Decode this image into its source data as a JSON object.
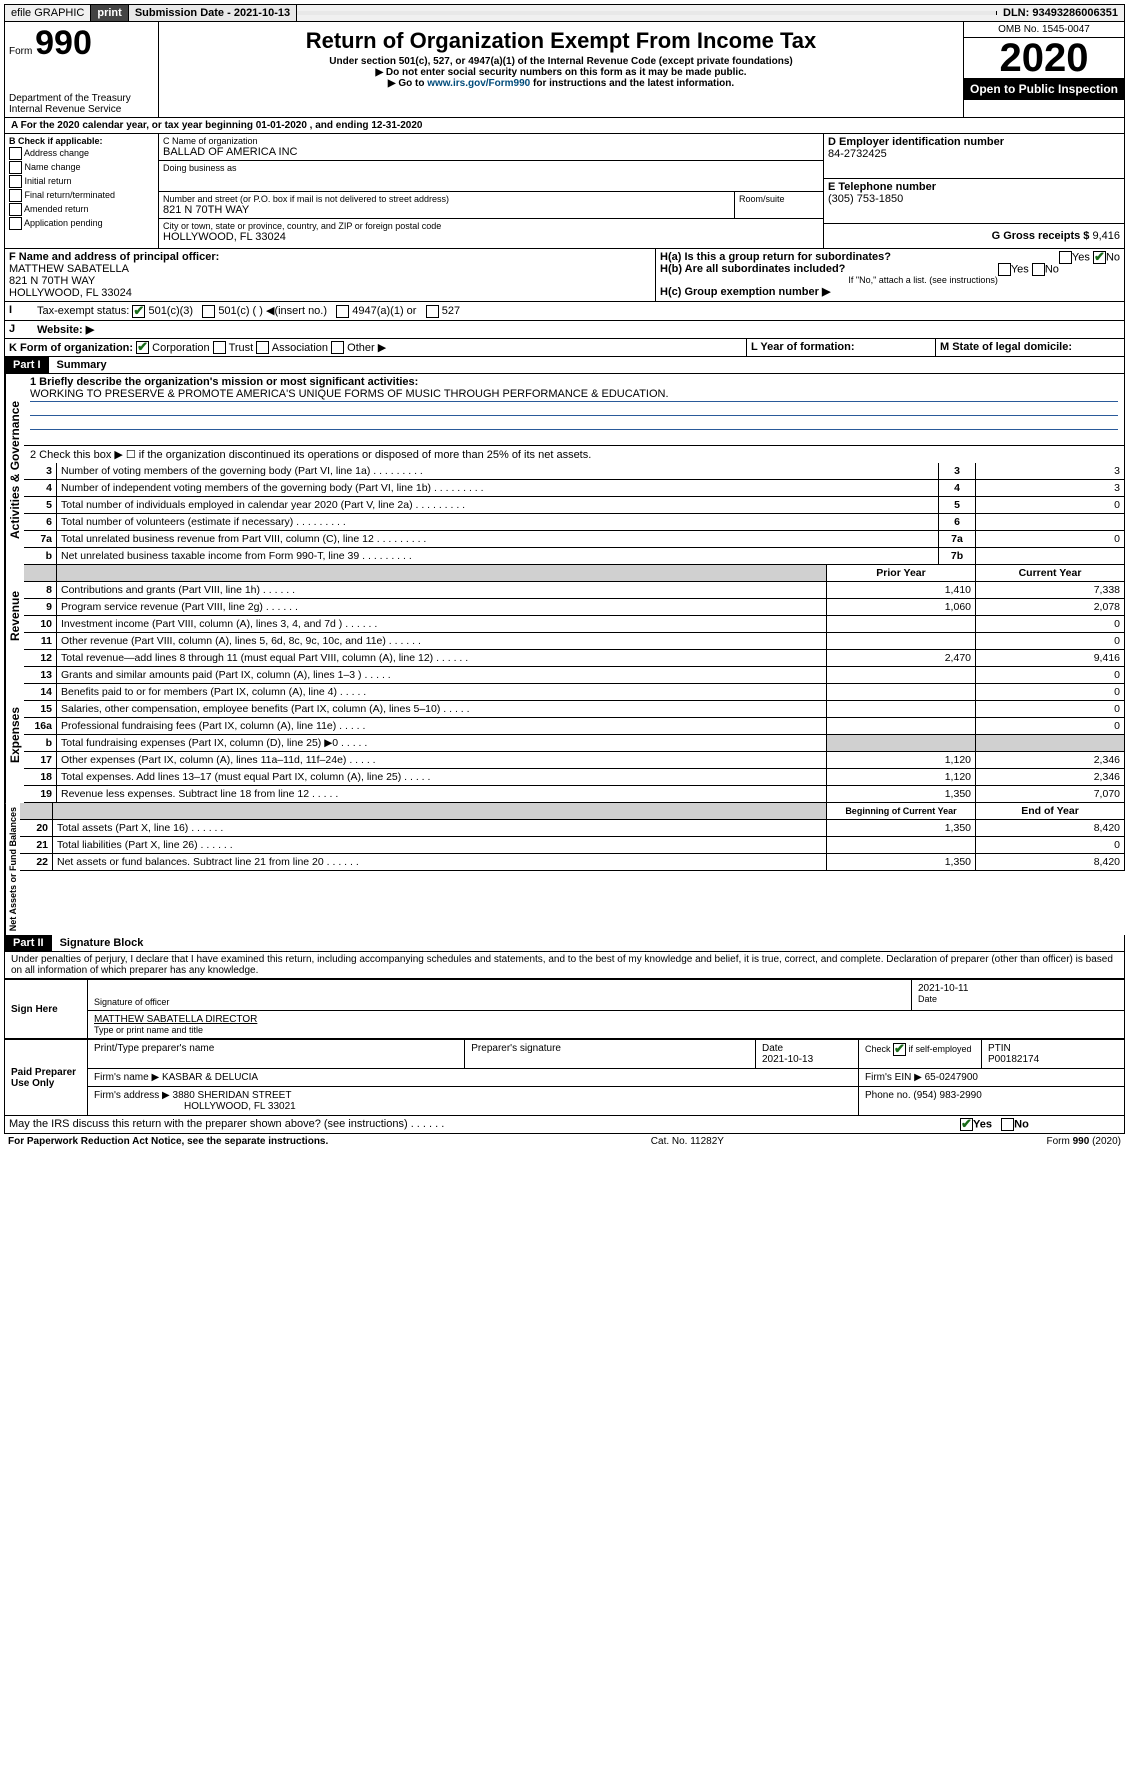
{
  "topbar": {
    "efile": "efile GRAPHIC",
    "print": "print",
    "subdate_label": "Submission Date - 2021-10-13",
    "dln": "DLN: 93493286006351"
  },
  "header": {
    "form_small": "Form",
    "form_num": "990",
    "dept": "Department of the Treasury\nInternal Revenue Service",
    "title": "Return of Organization Exempt From Income Tax",
    "sub1": "Under section 501(c), 527, or 4947(a)(1) of the Internal Revenue Code (except private foundations)",
    "sub2": "▶ Do not enter social security numbers on this form as it may be made public.",
    "sub3_pre": "▶ Go to ",
    "sub3_link": "www.irs.gov/Form990",
    "sub3_post": " for instructions and the latest information.",
    "omb": "OMB No. 1545-0047",
    "year": "2020",
    "otp": "Open to Public Inspection"
  },
  "period": "A   For the 2020 calendar year, or tax year beginning 01-01-2020    , and ending 12-31-2020",
  "boxB": {
    "label": "B Check if applicable:",
    "items": [
      "Address change",
      "Name change",
      "Initial return",
      "Final return/terminated",
      "Amended return",
      "Application pending"
    ]
  },
  "boxC": {
    "label": "C Name of organization",
    "name": "BALLAD OF AMERICA INC",
    "dba_label": "Doing business as",
    "addr_label": "Number and street (or P.O. box if mail is not delivered to street address)",
    "room": "Room/suite",
    "addr": "821 N 70TH WAY",
    "city_label": "City or town, state or province, country, and ZIP or foreign postal code",
    "city": "HOLLYWOOD, FL  33024"
  },
  "boxD": {
    "label": "D Employer identification number",
    "val": "84-2732425"
  },
  "boxE": {
    "label": "E Telephone number",
    "val": "(305) 753-1850"
  },
  "boxG": {
    "label": "G Gross receipts $",
    "val": "9,416"
  },
  "boxF": {
    "label": "F  Name and address of principal officer:",
    "name": "MATTHEW SABATELLA",
    "addr1": "821 N 70TH WAY",
    "addr2": "HOLLYWOOD, FL  33024"
  },
  "boxH": {
    "a_label": "H(a)  Is this a group return for subordinates?",
    "b_label": "H(b)  Are all subordinates included?",
    "note": "If \"No,\" attach a list. (see instructions)",
    "c_label": "H(c)  Group exemption number ▶"
  },
  "boxI": {
    "label": "Tax-exempt status:",
    "opts": [
      "501(c)(3)",
      "501(c) (  ) ◀(insert no.)",
      "4947(a)(1) or",
      "527"
    ]
  },
  "boxJ": {
    "label": "Website: ▶"
  },
  "boxK": {
    "label": "K Form of organization:",
    "opts": [
      "Corporation",
      "Trust",
      "Association",
      "Other ▶"
    ]
  },
  "boxL": {
    "label": "L Year of formation:"
  },
  "boxM": {
    "label": "M State of legal domicile:"
  },
  "part1": {
    "header": "Part I",
    "title": "Summary",
    "l1_label": "1  Briefly describe the organization's mission or most significant activities:",
    "l1_text": "WORKING TO PRESERVE & PROMOTE AMERICA'S UNIQUE FORMS OF MUSIC THROUGH PERFORMANCE & EDUCATION.",
    "l2": "2   Check this box ▶ ☐  if the organization discontinued its operations or disposed of more than 25% of its net assets.",
    "lines_gov": [
      {
        "n": "3",
        "t": "Number of voting members of the governing body (Part VI, line 1a)",
        "b": "3",
        "v": "3"
      },
      {
        "n": "4",
        "t": "Number of independent voting members of the governing body (Part VI, line 1b)",
        "b": "4",
        "v": "3"
      },
      {
        "n": "5",
        "t": "Total number of individuals employed in calendar year 2020 (Part V, line 2a)",
        "b": "5",
        "v": "0"
      },
      {
        "n": "6",
        "t": "Total number of volunteers (estimate if necessary)",
        "b": "6",
        "v": ""
      },
      {
        "n": "7a",
        "t": "Total unrelated business revenue from Part VIII, column (C), line 12",
        "b": "7a",
        "v": "0"
      },
      {
        "n": "b",
        "t": "Net unrelated business taxable income from Form 990-T, line 39",
        "b": "7b",
        "v": ""
      }
    ],
    "col_prior": "Prior Year",
    "col_curr": "Current Year",
    "lines_rev": [
      {
        "n": "8",
        "t": "Contributions and grants (Part VIII, line 1h)",
        "p": "1,410",
        "c": "7,338"
      },
      {
        "n": "9",
        "t": "Program service revenue (Part VIII, line 2g)",
        "p": "1,060",
        "c": "2,078"
      },
      {
        "n": "10",
        "t": "Investment income (Part VIII, column (A), lines 3, 4, and 7d )",
        "p": "",
        "c": "0"
      },
      {
        "n": "11",
        "t": "Other revenue (Part VIII, column (A), lines 5, 6d, 8c, 9c, 10c, and 11e)",
        "p": "",
        "c": "0"
      },
      {
        "n": "12",
        "t": "Total revenue—add lines 8 through 11 (must equal Part VIII, column (A), line 12)",
        "p": "2,470",
        "c": "9,416"
      }
    ],
    "lines_exp": [
      {
        "n": "13",
        "t": "Grants and similar amounts paid (Part IX, column (A), lines 1–3 )",
        "p": "",
        "c": "0"
      },
      {
        "n": "14",
        "t": "Benefits paid to or for members (Part IX, column (A), line 4)",
        "p": "",
        "c": "0"
      },
      {
        "n": "15",
        "t": "Salaries, other compensation, employee benefits (Part IX, column (A), lines 5–10)",
        "p": "",
        "c": "0"
      },
      {
        "n": "16a",
        "t": "Professional fundraising fees (Part IX, column (A), line 11e)",
        "p": "",
        "c": "0"
      },
      {
        "n": "b",
        "t": "Total fundraising expenses (Part IX, column (D), line 25) ▶0",
        "p": "SHADE",
        "c": "SHADE"
      },
      {
        "n": "17",
        "t": "Other expenses (Part IX, column (A), lines 11a–11d, 11f–24e)",
        "p": "1,120",
        "c": "2,346"
      },
      {
        "n": "18",
        "t": "Total expenses. Add lines 13–17 (must equal Part IX, column (A), line 25)",
        "p": "1,120",
        "c": "2,346"
      },
      {
        "n": "19",
        "t": "Revenue less expenses. Subtract line 18 from line 12",
        "p": "1,350",
        "c": "7,070"
      }
    ],
    "col_beg": "Beginning of Current Year",
    "col_end": "End of Year",
    "lines_net": [
      {
        "n": "20",
        "t": "Total assets (Part X, line 16)",
        "p": "1,350",
        "c": "8,420"
      },
      {
        "n": "21",
        "t": "Total liabilities (Part X, line 26)",
        "p": "",
        "c": "0"
      },
      {
        "n": "22",
        "t": "Net assets or fund balances. Subtract line 21 from line 20",
        "p": "1,350",
        "c": "8,420"
      }
    ],
    "vlabels": {
      "gov": "Activities & Governance",
      "rev": "Revenue",
      "exp": "Expenses",
      "net": "Net Assets or Fund Balances"
    }
  },
  "part2": {
    "header": "Part II",
    "title": "Signature Block",
    "decl": "Under penalties of perjury, I declare that I have examined this return, including accompanying schedules and statements, and to the best of my knowledge and belief, it is true, correct, and complete. Declaration of preparer (other than officer) is based on all information of which preparer has any knowledge."
  },
  "sign": {
    "left": "Sign Here",
    "sig_label": "Signature of officer",
    "date": "2021-10-11",
    "date_label": "Date",
    "name": "MATTHEW SABATELLA  DIRECTOR",
    "name_label": "Type or print name and title"
  },
  "paid": {
    "left": "Paid Preparer Use Only",
    "h_name": "Print/Type preparer's name",
    "h_sig": "Preparer's signature",
    "h_date": "Date",
    "h_check": "Check ☑ if self-employed",
    "h_ptin": "PTIN",
    "date": "2021-10-13",
    "ptin": "P00182174",
    "firm_label": "Firm's name    ▶",
    "firm": "KASBAR & DELUCIA",
    "ein_label": "Firm's EIN ▶",
    "ein": "65-0247900",
    "addr_label": "Firm's address ▶",
    "addr1": "3880 SHERIDAN STREET",
    "addr2": "HOLLYWOOD, FL  33021",
    "phone_label": "Phone no.",
    "phone": "(954) 983-2990"
  },
  "discuss": "May the IRS discuss this return with the preparer shown above? (see instructions)",
  "footer": {
    "l": "For Paperwork Reduction Act Notice, see the separate instructions.",
    "m": "Cat. No. 11282Y",
    "r": "Form 990 (2020)"
  }
}
